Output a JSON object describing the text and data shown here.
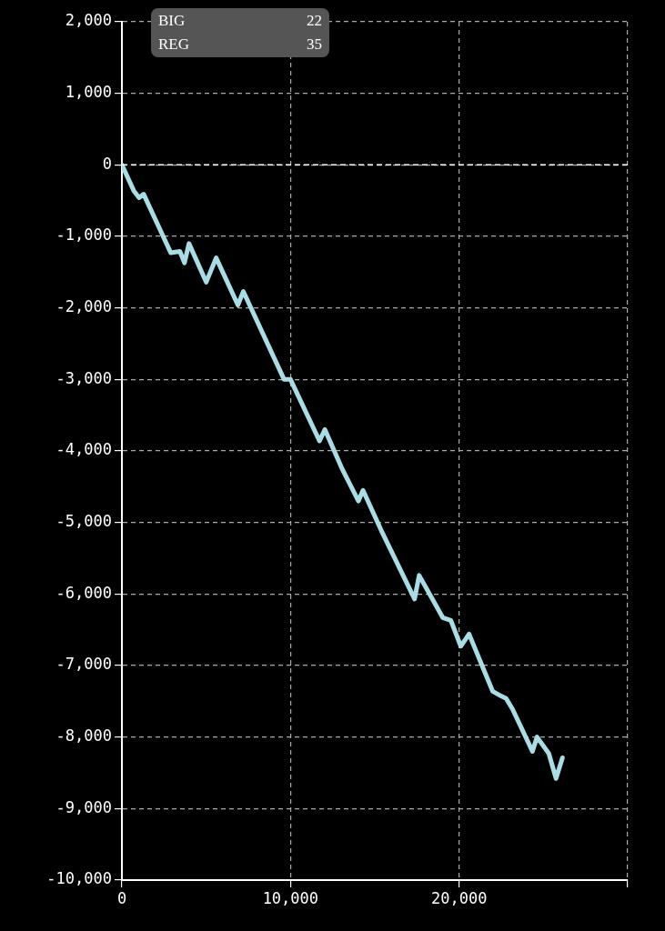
{
  "chart_data": {
    "type": "line",
    "x": [
      0,
      700,
      1020,
      1290,
      2900,
      3440,
      3710,
      3980,
      5000,
      5590,
      6880,
      7200,
      9620,
      10000,
      11720,
      12040,
      13060,
      14030,
      14300,
      15380,
      17360,
      17630,
      19030,
      19510,
      20100,
      20590,
      21990,
      22520,
      22790,
      23170,
      24350,
      24620,
      25320,
      25750,
      26130
    ],
    "series": [
      {
        "color": "#a8dde6",
        "values": [
          0,
          -360,
          -460,
          -410,
          -1230,
          -1210,
          -1370,
          -1100,
          -1640,
          -1300,
          -1960,
          -1770,
          -3000,
          -3000,
          -3860,
          -3700,
          -4250,
          -4700,
          -4550,
          -5110,
          -6070,
          -5740,
          -6330,
          -6370,
          -6730,
          -6560,
          -7360,
          -7430,
          -7460,
          -7610,
          -8200,
          -8000,
          -8230,
          -8580,
          -8290
        ]
      }
    ],
    "xlim": [
      0,
      30000
    ],
    "xticks": [
      0,
      {
        "value": 10000,
        "label": "10,000"
      },
      {
        "value": 20000,
        "label": "20,000"
      },
      {
        "value": 30000,
        "label": null
      }
    ],
    "ylim": [
      -10000,
      2000
    ],
    "yticks": [
      {
        "value": -10000,
        "label": "-10,000"
      },
      {
        "value": -9000,
        "label": "-9,000"
      },
      {
        "value": -8000,
        "label": "-8,000"
      },
      {
        "value": -7000,
        "label": "-7,000"
      },
      {
        "value": -6000,
        "label": "-6,000"
      },
      {
        "value": -5000,
        "label": "-5,000"
      },
      {
        "value": -4000,
        "label": "-4,000"
      },
      {
        "value": -3000,
        "label": "-3,000"
      },
      {
        "value": -2000,
        "label": "-2,000"
      },
      {
        "value": -1000,
        "label": "-1,000"
      },
      0,
      {
        "value": 1000,
        "label": "1,000"
      },
      {
        "value": 2000,
        "label": "2,000"
      }
    ],
    "grid": true,
    "legend": false,
    "marker": "none",
    "line_style": "solid",
    "ref_lines": [
      {
        "axis": "y",
        "value": 0,
        "color": "#ffffff",
        "line_style": "dashed"
      }
    ],
    "annotations": [
      "BIG",
      "22",
      "REG",
      "35"
    ]
  }
}
